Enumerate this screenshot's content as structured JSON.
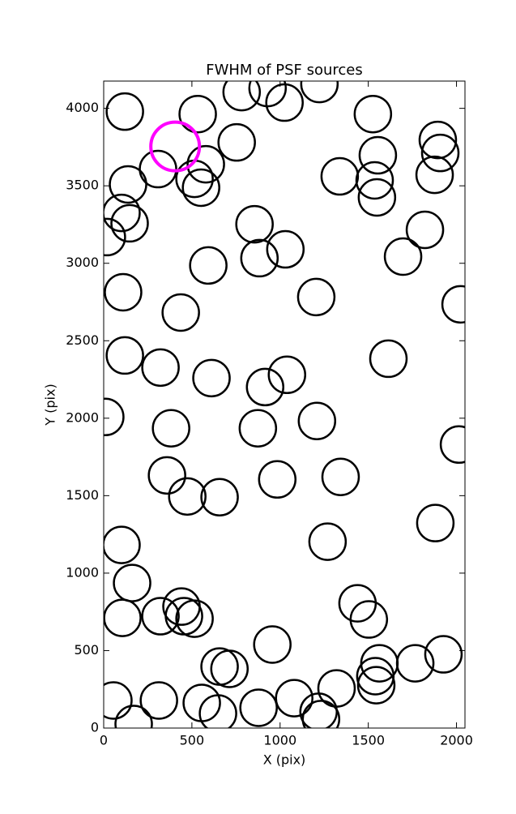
{
  "chart_data": {
    "type": "scatter",
    "title": "FWHM of PSF sources",
    "xlabel": "X (pix)",
    "ylabel": "Y (pix)",
    "xlim": [
      0,
      2048
    ],
    "ylim": [
      0,
      4176
    ],
    "xticks": [
      0,
      500,
      1000,
      1500,
      2000
    ],
    "yticks": [
      0,
      500,
      1000,
      1500,
      2000,
      2500,
      3000,
      3500,
      4000
    ],
    "grid": false,
    "series": [
      {
        "color": "#000000",
        "x": [
          120,
          533,
          782,
          929,
          1025,
          1223,
          1526,
          754,
          579,
          308,
          515,
          552,
          138,
          101,
          147,
          18,
          855,
          883,
          1030,
          593,
          110,
          437,
          1205,
          1338,
          1554,
          1536,
          1549,
          1894,
          1908,
          1876,
          1821,
          1697,
          2023,
          120,
          322,
          611,
          1039,
          915,
          1614,
          9,
          382,
          874,
          1209,
          2014,
          359,
          474,
          657,
          984,
          1343,
          1880,
          1269,
          101,
          161,
          106,
          322,
          441,
          455,
          515,
          1439,
          1503,
          956,
          657,
          713,
          1563,
          1766,
          1926,
          1540,
          1545,
          55,
          313,
          556,
          648,
          878,
          1080,
          1320,
          1218,
          1232,
          170
        ],
        "values": [
          3979,
          3963,
          4105,
          4131,
          4037,
          4157,
          3963,
          3780,
          3639,
          3608,
          3545,
          3488,
          3509,
          3325,
          3258,
          3169,
          3252,
          3033,
          3090,
          2986,
          2813,
          2682,
          2782,
          3561,
          3697,
          3535,
          3425,
          3796,
          3712,
          3571,
          3216,
          3043,
          2735,
          2405,
          2327,
          2259,
          2280,
          2201,
          2384,
          2008,
          1935,
          1935,
          1982,
          1830,
          1631,
          1495,
          1490,
          1605,
          1621,
          1323,
          1203,
          1182,
          936,
          711,
          722,
          784,
          722,
          706,
          805,
          701,
          539,
          397,
          382,
          418,
          418,
          476,
          335,
          277,
          178,
          178,
          162,
          94,
          131,
          193,
          256,
          105,
          58,
          26
        ]
      },
      {
        "color": "#ff00ff",
        "x": [
          405
        ],
        "values": [
          3754
        ]
      }
    ]
  }
}
